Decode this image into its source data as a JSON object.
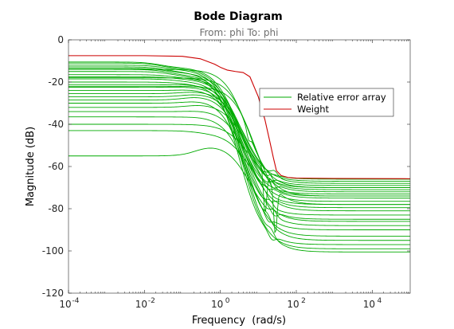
{
  "chart_data": {
    "type": "line",
    "title": "Bode Diagram",
    "subtitle": "From: phi  To: phi",
    "xlabel": "Frequency  (rad/s)",
    "ylabel": "Magnitude (dB)",
    "x_scale": "log",
    "xlim": [
      0.0001,
      100000
    ],
    "ylim": [
      -120,
      0
    ],
    "x_ticks": [
      {
        "value": 0.0001,
        "base": "10",
        "exp": "-4"
      },
      {
        "value": 0.01,
        "base": "10",
        "exp": "-2"
      },
      {
        "value": 1,
        "base": "10",
        "exp": "0"
      },
      {
        "value": 100,
        "base": "10",
        "exp": "2"
      },
      {
        "value": 10000,
        "base": "10",
        "exp": "4"
      }
    ],
    "y_ticks": [
      0,
      -20,
      -40,
      -60,
      -80,
      -100,
      -120
    ],
    "grid": false,
    "legend_position": "right",
    "colors": {
      "relative_error": "#00aa00",
      "weight": "#cc0000"
    },
    "series": [
      {
        "name": "Weight",
        "color": "#cc0000",
        "x": [
          0.0001,
          0.01,
          0.1,
          0.3,
          0.7,
          1,
          1.5,
          2.5,
          4,
          6,
          10,
          15,
          20,
          25,
          30,
          40,
          60,
          100,
          1000,
          100000
        ],
        "y": [
          -7.5,
          -7.5,
          -7.8,
          -9,
          -11.5,
          -13,
          -14.3,
          -15,
          -15.5,
          -17.5,
          -27,
          -38,
          -48,
          -56,
          -62,
          -64.3,
          -65.2,
          -65.5,
          -65.7,
          -65.8
        ]
      }
    ],
    "error_array": {
      "name": "Relative error array",
      "color": "#00aa00",
      "low_levels": [
        -10.5,
        -11,
        -12,
        -12.8,
        -13.5,
        -14,
        -15,
        -16.5,
        -17.5,
        -18.5,
        -20,
        -21.2,
        -22.5,
        -24,
        -25.5,
        -27,
        -28.5,
        -30,
        -32,
        -34,
        -36.5,
        -40,
        -43,
        -55
      ],
      "peak_level": [
        -13,
        -13.5,
        -14,
        -15,
        -15.5,
        -16.5,
        -17,
        -18,
        -18.5,
        -19.5,
        -20.5,
        -21,
        -22,
        -23,
        -24,
        -25,
        -26,
        -28,
        -30,
        -33,
        -36,
        -40,
        -44,
        -49
      ],
      "high_levels": [
        -66,
        -67,
        -68,
        -69,
        -70,
        -71,
        -72,
        -73,
        -74,
        -75,
        -76.5,
        -78,
        -79.5,
        -81,
        -83,
        -85,
        -86,
        -88,
        -90,
        -93,
        -95,
        -97,
        -99,
        -100.5
      ],
      "dip_curves": [
        {
          "x": 5.5,
          "y": -73.5
        },
        {
          "x": 15,
          "y": -94.5
        },
        {
          "x": 28,
          "y": -100
        }
      ]
    }
  }
}
